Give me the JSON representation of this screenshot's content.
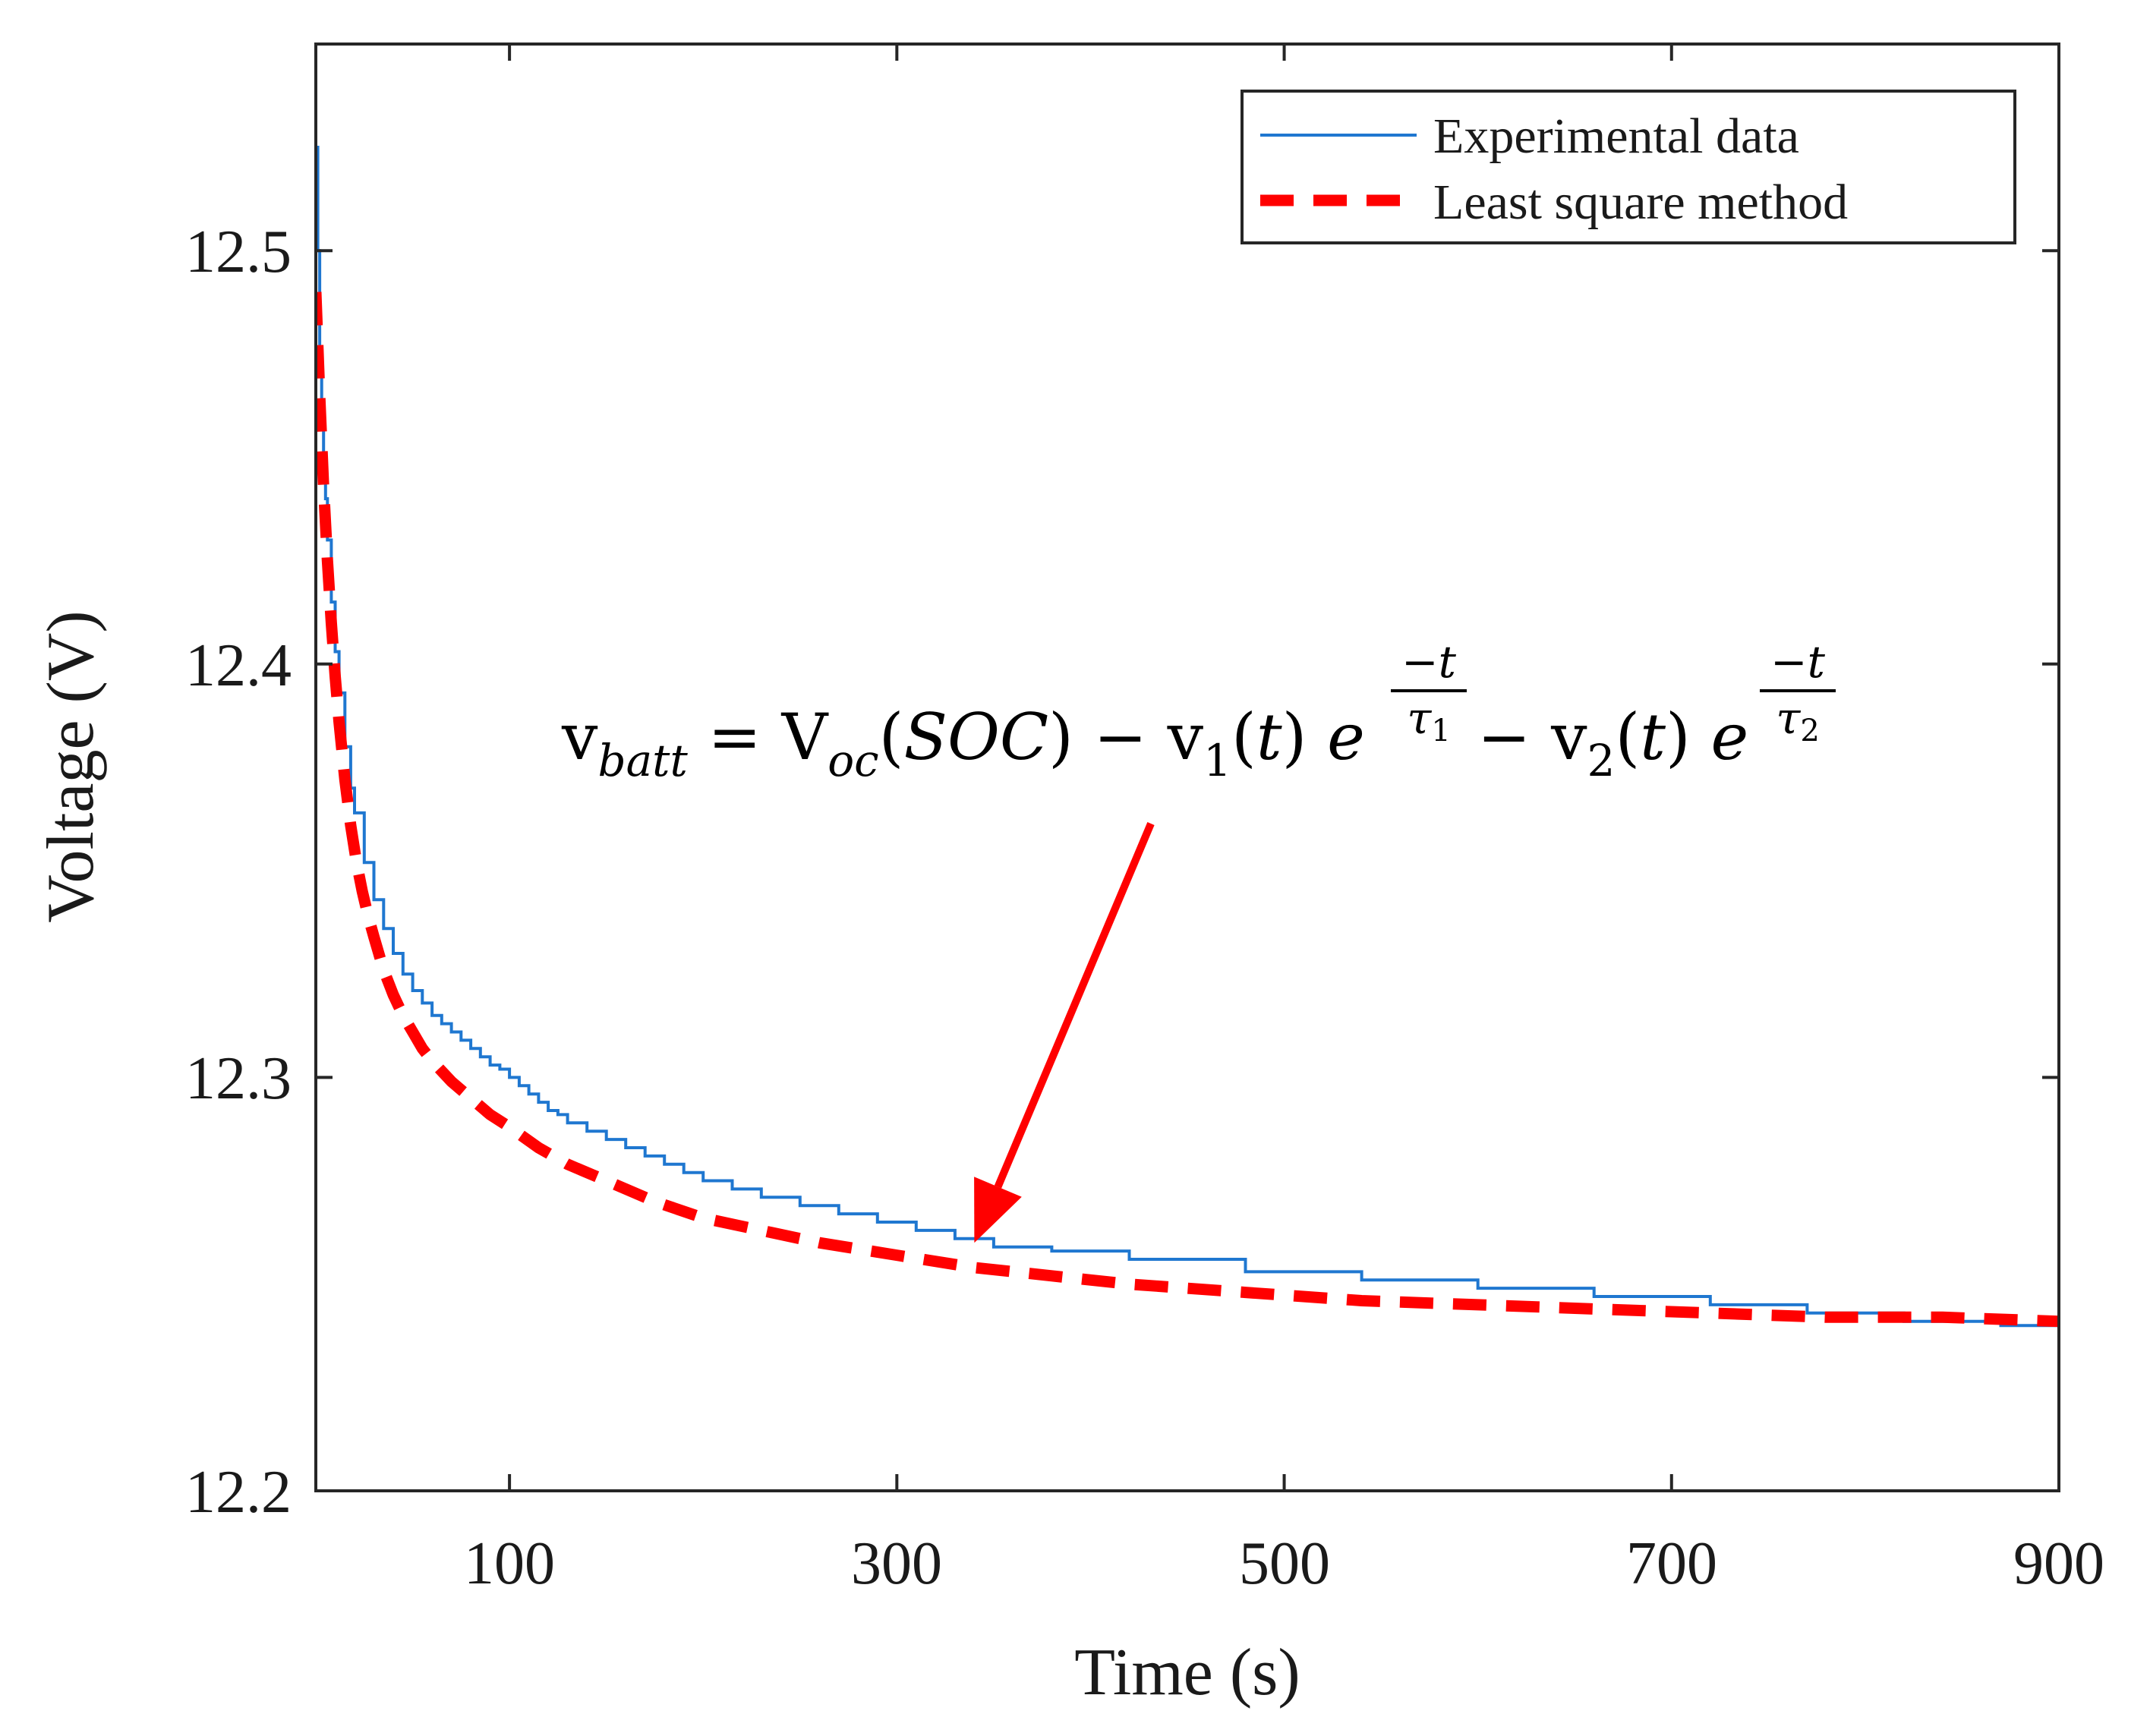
{
  "chart_data": {
    "type": "line",
    "xlabel": "Time (s)",
    "ylabel": "Voltage (V)",
    "xlim": [
      0,
      900
    ],
    "ylim": [
      12.2,
      12.55
    ],
    "xticks": [
      100,
      300,
      500,
      700,
      900
    ],
    "xtick_labels": [
      "100",
      "300",
      "500",
      "700",
      "900"
    ],
    "yticks": [
      12.2,
      12.3,
      12.4,
      12.5
    ],
    "ytick_labels": [
      "12.2",
      "12.3",
      "12.4",
      "12.5"
    ],
    "grid": false,
    "legend_position": "top-right",
    "series": [
      {
        "name": "Experimental data",
        "style": "solid-step",
        "color": "#1f77d0",
        "x": [
          0,
          1,
          2,
          3,
          4,
          5,
          6,
          8,
          10,
          12,
          15,
          18,
          20,
          25,
          30,
          35,
          40,
          45,
          50,
          55,
          60,
          65,
          70,
          75,
          80,
          85,
          90,
          95,
          100,
          105,
          110,
          115,
          120,
          125,
          130,
          140,
          150,
          160,
          170,
          180,
          190,
          200,
          215,
          230,
          250,
          270,
          290,
          310,
          330,
          350,
          380,
          420,
          480,
          540,
          600,
          660,
          720,
          770,
          820,
          870,
          900
        ],
        "y": [
          12.525,
          12.5,
          12.476,
          12.46,
          12.45,
          12.44,
          12.43,
          12.415,
          12.403,
          12.393,
          12.38,
          12.37,
          12.364,
          12.352,
          12.343,
          12.336,
          12.33,
          12.325,
          12.321,
          12.318,
          12.315,
          12.313,
          12.311,
          12.309,
          12.307,
          12.305,
          12.303,
          12.302,
          12.3,
          12.298,
          12.296,
          12.294,
          12.292,
          12.291,
          12.289,
          12.287,
          12.285,
          12.283,
          12.281,
          12.279,
          12.277,
          12.275,
          12.273,
          12.271,
          12.269,
          12.267,
          12.265,
          12.263,
          12.261,
          12.259,
          12.258,
          12.256,
          12.253,
          12.251,
          12.249,
          12.247,
          12.245,
          12.243,
          12.241,
          12.24,
          12.24
        ]
      },
      {
        "name": "Least square method",
        "style": "dashed",
        "color": "#ff0000",
        "x": [
          0,
          2,
          4,
          6,
          8,
          10,
          12,
          15,
          18,
          21,
          24,
          27,
          30,
          35,
          40,
          45,
          50,
          55,
          60,
          70,
          80,
          90,
          100,
          115,
          130,
          150,
          175,
          200,
          230,
          260,
          300,
          340,
          380,
          420,
          480,
          540,
          600,
          660,
          720,
          780,
          840,
          900
        ],
        "y": [
          12.49,
          12.465,
          12.443,
          12.425,
          12.41,
          12.397,
          12.386,
          12.372,
          12.361,
          12.352,
          12.345,
          12.339,
          12.334,
          12.326,
          12.32,
          12.315,
          12.311,
          12.307,
          12.304,
          12.299,
          12.295,
          12.291,
          12.288,
          12.283,
          12.279,
          12.275,
          12.27,
          12.266,
          12.263,
          12.26,
          12.257,
          12.254,
          12.252,
          12.25,
          12.248,
          12.246,
          12.245,
          12.244,
          12.243,
          12.242,
          12.242,
          12.241
        ]
      }
    ],
    "annotation": {
      "equation": "v_batt = V_oc(SOC) − v_1(t) e^(−t/τ_1) − v_2(t) e^(−t/τ_2)",
      "arrow_target": {
        "x": 340,
        "y": 12.26
      },
      "arrow_color": "#ff0000"
    }
  }
}
